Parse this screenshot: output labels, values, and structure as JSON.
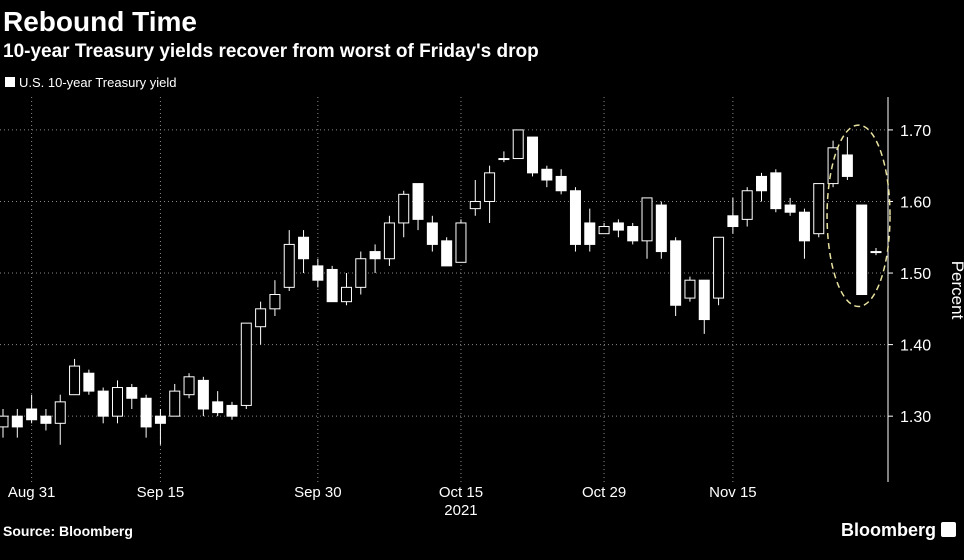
{
  "chart_data": {
    "type": "candlestick",
    "title": "Rebound Time",
    "subtitle": "10-year Treasury yields recover from worst of Friday's drop",
    "source": "Source: Bloomberg",
    "brand": "Bloomberg",
    "ylabel": "Percent",
    "xlabel": "2021",
    "categories": [
      null,
      null,
      "Aug 31",
      null,
      null,
      null,
      null,
      null,
      null,
      null,
      null,
      "Sep 15",
      null,
      null,
      null,
      null,
      null,
      null,
      null,
      null,
      null,
      null,
      "Sep 30",
      null,
      null,
      null,
      null,
      null,
      null,
      null,
      null,
      null,
      "Oct 15",
      null,
      null,
      null,
      null,
      null,
      null,
      null,
      null,
      null,
      "Oct 29",
      null,
      null,
      null,
      null,
      null,
      null,
      null,
      null,
      "Nov 15",
      null,
      null,
      null,
      null,
      null,
      null,
      null,
      null,
      null,
      null
    ],
    "xlabel_category": 32,
    "series": [
      {
        "name": "U.S. 10-year Treasury yield",
        "color": "#ffffff",
        "open": [
          1.285,
          1.3,
          1.31,
          1.3,
          1.29,
          1.33,
          1.36,
          1.335,
          1.3,
          1.34,
          1.325,
          1.3,
          1.3,
          1.33,
          1.35,
          1.32,
          1.315,
          1.315,
          1.425,
          1.45,
          1.48,
          1.55,
          1.51,
          1.505,
          1.46,
          1.48,
          1.53,
          1.52,
          1.57,
          1.625,
          1.57,
          1.545,
          1.515,
          1.59,
          1.6,
          1.66,
          1.66,
          1.69,
          1.645,
          1.635,
          1.615,
          1.57,
          1.555,
          1.57,
          1.565,
          1.545,
          1.595,
          1.545,
          1.465,
          1.49,
          1.465,
          1.58,
          1.575,
          1.635,
          1.64,
          1.595,
          1.585,
          1.555,
          1.625,
          1.665,
          1.595,
          1.53
        ],
        "high": [
          1.31,
          1.31,
          1.33,
          1.31,
          1.33,
          1.38,
          1.365,
          1.34,
          1.35,
          1.345,
          1.33,
          1.31,
          1.345,
          1.36,
          1.355,
          1.335,
          1.32,
          1.43,
          1.46,
          1.49,
          1.56,
          1.56,
          1.52,
          1.51,
          1.5,
          1.53,
          1.54,
          1.58,
          1.615,
          1.625,
          1.58,
          1.55,
          1.575,
          1.63,
          1.65,
          1.67,
          1.7,
          1.69,
          1.65,
          1.645,
          1.62,
          1.59,
          1.57,
          1.575,
          1.57,
          1.605,
          1.6,
          1.55,
          1.495,
          1.49,
          1.55,
          1.605,
          1.62,
          1.64,
          1.645,
          1.605,
          1.59,
          1.625,
          1.685,
          1.69,
          1.595,
          1.535
        ],
        "low": [
          1.27,
          1.27,
          1.29,
          1.28,
          1.26,
          1.33,
          1.33,
          1.29,
          1.29,
          1.31,
          1.27,
          1.26,
          1.3,
          1.325,
          1.3,
          1.3,
          1.295,
          1.31,
          1.4,
          1.44,
          1.475,
          1.5,
          1.48,
          1.46,
          1.455,
          1.47,
          1.5,
          1.51,
          1.55,
          1.56,
          1.53,
          1.51,
          1.515,
          1.58,
          1.57,
          1.655,
          1.66,
          1.635,
          1.62,
          1.61,
          1.53,
          1.53,
          1.555,
          1.55,
          1.54,
          1.52,
          1.52,
          1.44,
          1.46,
          1.415,
          1.455,
          1.555,
          1.565,
          1.6,
          1.585,
          1.58,
          1.52,
          1.55,
          1.62,
          1.63,
          1.47,
          1.525
        ],
        "close": [
          1.3,
          1.285,
          1.295,
          1.29,
          1.32,
          1.37,
          1.335,
          1.3,
          1.34,
          1.325,
          1.285,
          1.29,
          1.335,
          1.355,
          1.31,
          1.305,
          1.3,
          1.43,
          1.45,
          1.47,
          1.54,
          1.52,
          1.49,
          1.46,
          1.48,
          1.52,
          1.52,
          1.57,
          1.61,
          1.575,
          1.54,
          1.51,
          1.57,
          1.6,
          1.64,
          1.66,
          1.7,
          1.64,
          1.63,
          1.615,
          1.54,
          1.54,
          1.565,
          1.56,
          1.545,
          1.605,
          1.53,
          1.455,
          1.49,
          1.435,
          1.55,
          1.565,
          1.615,
          1.615,
          1.59,
          1.585,
          1.545,
          1.625,
          1.675,
          1.635,
          1.47,
          1.53
        ]
      }
    ],
    "ylim": [
      1.208,
      1.746
    ],
    "yticks": [
      {
        "value": 1.3,
        "label": "1.30"
      },
      {
        "value": 1.4,
        "label": "1.40"
      },
      {
        "value": 1.5,
        "label": "1.50"
      },
      {
        "value": 1.6,
        "label": "1.60"
      },
      {
        "value": 1.7,
        "label": "1.70"
      }
    ],
    "grid": true,
    "annotation_ellipse_categories": [
      58,
      61
    ]
  }
}
